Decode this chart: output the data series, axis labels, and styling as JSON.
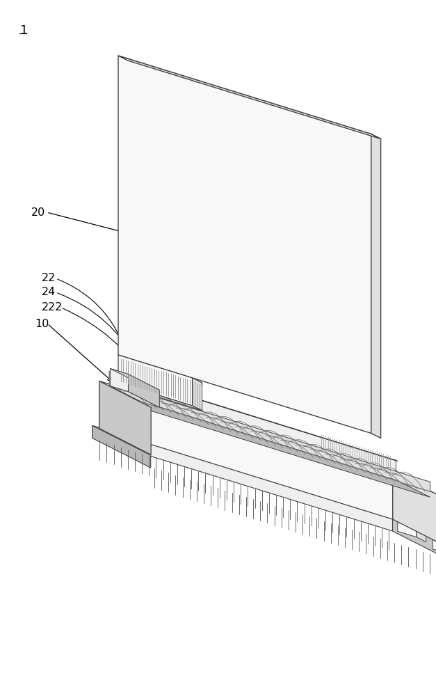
{
  "bg_color": "#ffffff",
  "lc": "#404040",
  "lc_thin": "#606060",
  "face_white": "#f8f8f8",
  "face_light": "#efefef",
  "face_mid": "#e0e0e0",
  "face_dark": "#c8c8c8",
  "face_darker": "#b8b8b8",
  "face_spring": "#d0d0d0",
  "label_1": "1",
  "label_20": "20",
  "label_22": "22",
  "label_24": "24",
  "label_222": "222",
  "label_10": "10",
  "fig_width": 6.27,
  "fig_height": 10.0
}
